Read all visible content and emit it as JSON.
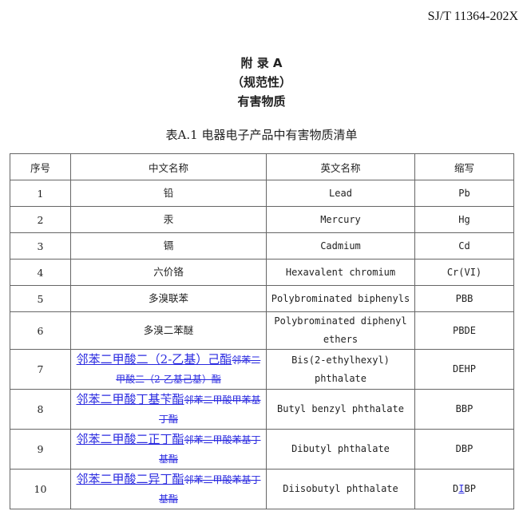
{
  "standard_code": "SJ/T 11364-202X",
  "appendix": {
    "title": "附 录 A",
    "nature": "（规范性）",
    "subject": "有害物质"
  },
  "table": {
    "caption": "表A.1 电器电子产品中有害物质清单",
    "headers": [
      "序号",
      "中文名称",
      "英文名称",
      "缩写"
    ],
    "rows": [
      {
        "no": "1",
        "cn": "铅",
        "en": "Lead",
        "abbr": "Pb"
      },
      {
        "no": "2",
        "cn": "汞",
        "en": "Mercury",
        "abbr": "Hg"
      },
      {
        "no": "3",
        "cn": "镉",
        "en": "Cadmium",
        "abbr": "Cd"
      },
      {
        "no": "4",
        "cn": "六价铬",
        "en": "Hexavalent chromium",
        "abbr": "Cr(VI)"
      },
      {
        "no": "5",
        "cn": "多溴联苯",
        "en": "Polybrominated biphenyls",
        "abbr": "PBB"
      },
      {
        "no": "6",
        "cn": "多溴二苯醚",
        "en": "Polybrominated diphenyl ethers",
        "abbr": "PBDE"
      },
      {
        "no": "7",
        "cn_inserted": "邻苯二甲酸二（2-乙基）己酯",
        "cn_deleted": "邻苯二甲酸二（2-乙基己基）酯",
        "en": "Bis(2-ethylhexyl) phthalate",
        "abbr": "DEHP"
      },
      {
        "no": "8",
        "cn_inserted": "邻苯二甲酸丁基苄酯",
        "cn_deleted": "邻苯二甲酸甲苯基丁酯",
        "en": "Butyl benzyl phthalate",
        "abbr": "BBP"
      },
      {
        "no": "9",
        "cn_inserted": "邻苯二甲酸二正丁酯",
        "cn_deleted": "邻苯二甲酸苯基丁基酯",
        "en": "Dibutyl phthalate",
        "abbr": "DBP"
      },
      {
        "no": "10",
        "cn_inserted": "邻苯二甲酸二异丁酯",
        "cn_deleted": "邻苯二甲酸苯基丁基酯",
        "en": "Diisobutyl phthalate",
        "abbr_parts": [
          "D",
          "I",
          "BP"
        ]
      }
    ]
  },
  "colors": {
    "revision": "#2a2ae0"
  }
}
